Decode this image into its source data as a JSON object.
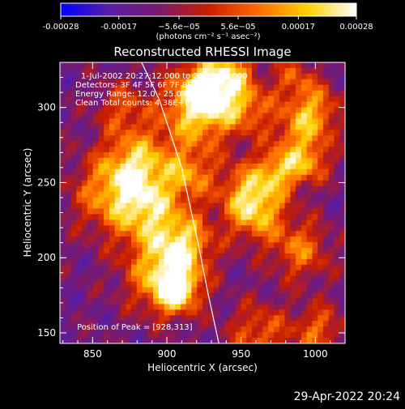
{
  "chart_data": {
    "type": "heatmap",
    "title": "Reconstructed RHESSI Image",
    "xlabel": "Heliocentric X (arcsec)",
    "ylabel": "Heliocentric Y (arcsec)",
    "xlim": [
      828,
      1020
    ],
    "ylim": [
      143,
      330
    ],
    "x_ticks": [
      850,
      900,
      950,
      1000
    ],
    "y_ticks": [
      150,
      200,
      250,
      300
    ],
    "colorbar": {
      "range": [
        -0.00028,
        0.00028
      ],
      "tick_values": [
        -0.00028,
        -0.00017,
        -5.6e-05,
        5.6e-05,
        0.00017,
        0.00028
      ],
      "tick_labels": [
        "-0.00028",
        "-0.00017",
        "−5.6e−05",
        "5.6e−05",
        "0.00017",
        "0.00028"
      ],
      "unit_label": "(photons cm⁻² s⁻¹ asec⁻²)",
      "colors": [
        "#0000ff",
        "#5a1ea0",
        "#7a1a6e",
        "#c81e00",
        "#ff6a00",
        "#ffd000",
        "#ffffff"
      ]
    },
    "annotations": {
      "time": "1-Jul-2002 20:27:12.000 to 20:33:12.000",
      "detectors": "Detectors: 3F 4F 5F 6F 7F 8F  Att 0",
      "energy": "Energy Range: 12.0 - 25.0 keV",
      "method": "Clean     Total counts: 4.38E+03",
      "peak": "Position of Peak = [928,313]"
    },
    "limb_curve": [
      [
        883,
        330
      ],
      [
        895,
        305
      ],
      [
        910,
        260
      ],
      [
        921,
        210
      ],
      [
        928,
        175
      ],
      [
        935,
        143
      ]
    ],
    "grid": false
  },
  "footer": {
    "date": "29-Apr-2022 20:24"
  }
}
